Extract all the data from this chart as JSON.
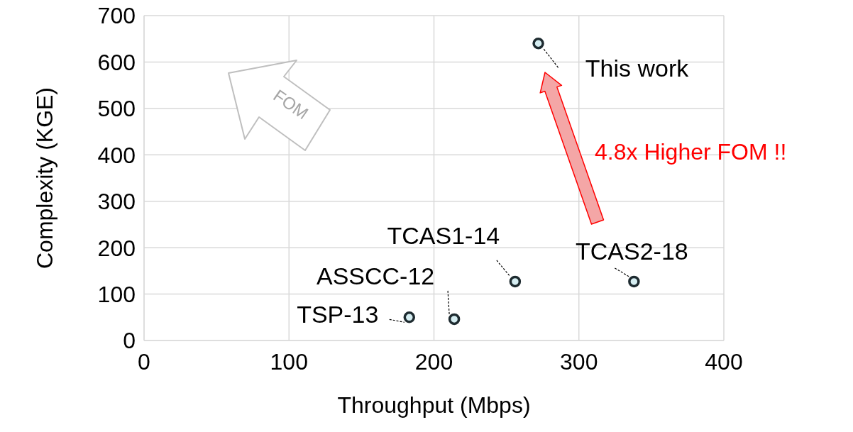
{
  "chart_data": {
    "type": "scatter",
    "xlabel": "Throughput (Mbps)",
    "ylabel": "Complexity (KGE)",
    "x": [
      183,
      214,
      256,
      338,
      272
    ],
    "series": [
      {
        "color": "#1e2b30",
        "values": [
          50,
          46,
          127,
          127,
          640
        ]
      }
    ],
    "xlim": [
      0,
      400
    ],
    "xticks": [
      0,
      100,
      200,
      300,
      400
    ],
    "ylim": [
      0,
      700
    ],
    "yticks": [
      0,
      100,
      200,
      300,
      400,
      500,
      600,
      700
    ],
    "grid": true,
    "legend": false,
    "marker": "circle",
    "annotations": [
      {
        "text": "TSP-13",
        "x": 183,
        "y": 50
      },
      {
        "text": "ASSCC-12",
        "x": 214,
        "y": 46
      },
      {
        "text": "TCAS1-14",
        "x": 256,
        "y": 127
      },
      {
        "text": "TCAS2-18",
        "x": 338,
        "y": 127
      },
      {
        "text": "This work",
        "x": 272,
        "y": 640
      },
      "FOM",
      "4.8x Higher FOM !!"
    ]
  }
}
